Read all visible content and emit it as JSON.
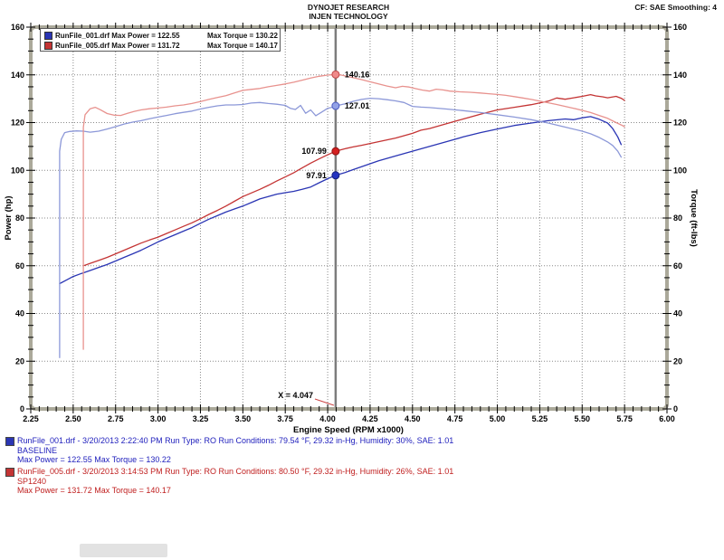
{
  "header": {
    "title_line1": "DYNOJET RESEARCH",
    "title_line2": "INJEN TECHNOLOGY",
    "cf_label": "CF: SAE  Smoothing: 4"
  },
  "legend": {
    "rows": [
      {
        "color": "#2a35b4",
        "left": "RunFile_001.drf Max Power = 122.55",
        "right": "Max Torque = 130.22"
      },
      {
        "color": "#c43434",
        "left": "RunFile_005.drf Max Power = 131.72",
        "right": "Max Torque = 140.17"
      }
    ]
  },
  "chart_data": {
    "type": "line",
    "title": "DYNOJET RESEARCH / INJEN TECHNOLOGY",
    "xlabel": "Engine Speed (RPM x1000)",
    "ylabel_left": "Power (hp)",
    "ylabel_right": "Torque (ft-lbs)",
    "xlim": [
      2.25,
      6.0
    ],
    "ylim": [
      0,
      160
    ],
    "x_major_step": 0.25,
    "x_minor_step": 0.05,
    "y_major_step": 20,
    "y_minor_step": 5,
    "grid": true,
    "legend_position": "top-left",
    "cursor_x": 4.047,
    "cursor_label": "X = 4.047",
    "x_tick_labels": [
      "2.25",
      "2.50",
      "2.75",
      "3.00",
      "3.25",
      "3.50",
      "3.75",
      "4.00",
      "4.25",
      "4.50",
      "4.75",
      "5.00",
      "5.25",
      "5.50",
      "5.75",
      "6.00"
    ],
    "y_tick_labels": [
      "0",
      "20",
      "40",
      "60",
      "80",
      "100",
      "120",
      "140",
      "160"
    ],
    "colors": {
      "grid": "#8a8a8a",
      "frame": "#aba99a",
      "cursor": "#7d7d7d",
      "annotation_pointer": "#cc4444"
    },
    "series": [
      {
        "name": "baseline-power",
        "label": "RunFile_001 Power (hp)",
        "color": "#2a35b4",
        "width": 1.3,
        "points": [
          [
            2.42,
            52.5
          ],
          [
            2.46,
            54
          ],
          [
            2.5,
            55.5
          ],
          [
            2.55,
            56.8
          ],
          [
            2.6,
            58
          ],
          [
            2.65,
            59.3
          ],
          [
            2.7,
            60.5
          ],
          [
            2.75,
            62
          ],
          [
            2.8,
            63.5
          ],
          [
            2.85,
            65
          ],
          [
            2.9,
            66.5
          ],
          [
            2.95,
            68.2
          ],
          [
            3.0,
            70
          ],
          [
            3.05,
            71.5
          ],
          [
            3.1,
            73
          ],
          [
            3.15,
            74.5
          ],
          [
            3.2,
            76
          ],
          [
            3.25,
            77.8
          ],
          [
            3.3,
            79.5
          ],
          [
            3.35,
            81
          ],
          [
            3.4,
            82.5
          ],
          [
            3.45,
            83.8
          ],
          [
            3.5,
            85
          ],
          [
            3.55,
            86.5
          ],
          [
            3.6,
            88
          ],
          [
            3.65,
            89
          ],
          [
            3.7,
            90
          ],
          [
            3.75,
            90.6
          ],
          [
            3.8,
            91.2
          ],
          [
            3.85,
            92
          ],
          [
            3.9,
            93
          ],
          [
            3.95,
            94.8
          ],
          [
            4.0,
            96.5
          ],
          [
            4.047,
            97.9
          ],
          [
            4.1,
            99
          ],
          [
            4.15,
            100.3
          ],
          [
            4.2,
            101.5
          ],
          [
            4.3,
            104
          ],
          [
            4.4,
            106
          ],
          [
            4.5,
            108
          ],
          [
            4.6,
            110
          ],
          [
            4.7,
            112
          ],
          [
            4.8,
            114
          ],
          [
            4.9,
            115.8
          ],
          [
            5.0,
            117.3
          ],
          [
            5.1,
            118.8
          ],
          [
            5.2,
            119.8
          ],
          [
            5.3,
            120.8
          ],
          [
            5.4,
            121.5
          ],
          [
            5.45,
            121.2
          ],
          [
            5.5,
            122
          ],
          [
            5.55,
            122.5
          ],
          [
            5.6,
            121.4
          ],
          [
            5.65,
            119.8
          ],
          [
            5.68,
            117.5
          ],
          [
            5.71,
            114
          ],
          [
            5.73,
            110.8
          ]
        ]
      },
      {
        "name": "sp1240-power",
        "label": "RunFile_005 Power (hp)",
        "color": "#c43434",
        "width": 1.3,
        "points": [
          [
            2.56,
            60
          ],
          [
            2.6,
            61
          ],
          [
            2.65,
            62.2
          ],
          [
            2.7,
            63.5
          ],
          [
            2.75,
            65
          ],
          [
            2.8,
            66.5
          ],
          [
            2.85,
            68
          ],
          [
            2.9,
            69.5
          ],
          [
            2.95,
            70.8
          ],
          [
            3.0,
            72
          ],
          [
            3.05,
            73.5
          ],
          [
            3.1,
            75
          ],
          [
            3.15,
            76.5
          ],
          [
            3.2,
            78
          ],
          [
            3.25,
            79.7
          ],
          [
            3.3,
            81.5
          ],
          [
            3.35,
            83.2
          ],
          [
            3.4,
            85
          ],
          [
            3.45,
            87
          ],
          [
            3.5,
            89
          ],
          [
            3.55,
            90.5
          ],
          [
            3.6,
            92
          ],
          [
            3.65,
            93.7
          ],
          [
            3.7,
            95.5
          ],
          [
            3.75,
            97.2
          ],
          [
            3.8,
            99
          ],
          [
            3.85,
            101
          ],
          [
            3.9,
            103
          ],
          [
            3.95,
            104.8
          ],
          [
            4.0,
            106.5
          ],
          [
            4.047,
            108
          ],
          [
            4.1,
            109
          ],
          [
            4.15,
            109.8
          ],
          [
            4.2,
            110.5
          ],
          [
            4.3,
            112
          ],
          [
            4.4,
            113.5
          ],
          [
            4.5,
            115.5
          ],
          [
            4.55,
            116.8
          ],
          [
            4.6,
            117.5
          ],
          [
            4.7,
            119.5
          ],
          [
            4.8,
            121.5
          ],
          [
            4.9,
            123.5
          ],
          [
            5.0,
            125.3
          ],
          [
            5.1,
            126.4
          ],
          [
            5.2,
            127.5
          ],
          [
            5.3,
            129
          ],
          [
            5.35,
            130.3
          ],
          [
            5.4,
            129.8
          ],
          [
            5.45,
            130.4
          ],
          [
            5.5,
            131
          ],
          [
            5.55,
            131.7
          ],
          [
            5.58,
            131.2
          ],
          [
            5.62,
            130.8
          ],
          [
            5.65,
            130.4
          ],
          [
            5.7,
            131
          ],
          [
            5.73,
            130.2
          ],
          [
            5.75,
            129.3
          ]
        ]
      },
      {
        "name": "baseline-torque",
        "label": "RunFile_001 Torque (ft-lbs)",
        "color": "#8c98d8",
        "width": 1.3,
        "points": [
          [
            2.42,
            21.5
          ],
          [
            2.42,
            108
          ],
          [
            2.43,
            113
          ],
          [
            2.45,
            115.8
          ],
          [
            2.48,
            116.3
          ],
          [
            2.52,
            116.5
          ],
          [
            2.56,
            116.4
          ],
          [
            2.6,
            116
          ],
          [
            2.65,
            116.4
          ],
          [
            2.7,
            117.3
          ],
          [
            2.75,
            118.3
          ],
          [
            2.8,
            119.4
          ],
          [
            2.85,
            120.2
          ],
          [
            2.9,
            120.8
          ],
          [
            2.95,
            121.6
          ],
          [
            3.0,
            122.3
          ],
          [
            3.05,
            123
          ],
          [
            3.1,
            123.7
          ],
          [
            3.15,
            124.3
          ],
          [
            3.2,
            124.8
          ],
          [
            3.25,
            125.7
          ],
          [
            3.3,
            126.4
          ],
          [
            3.35,
            127
          ],
          [
            3.4,
            127.4
          ],
          [
            3.45,
            127.4
          ],
          [
            3.5,
            127.6
          ],
          [
            3.55,
            128.2
          ],
          [
            3.6,
            128.4
          ],
          [
            3.65,
            128
          ],
          [
            3.7,
            127.7
          ],
          [
            3.75,
            127.2
          ],
          [
            3.78,
            126
          ],
          [
            3.81,
            125.5
          ],
          [
            3.84,
            127.2
          ],
          [
            3.87,
            123.9
          ],
          [
            3.9,
            125.3
          ],
          [
            3.93,
            122.9
          ],
          [
            3.96,
            124.2
          ],
          [
            4.0,
            126
          ],
          [
            4.02,
            126.3
          ],
          [
            4.047,
            127
          ],
          [
            4.1,
            127.8
          ],
          [
            4.15,
            128.9
          ],
          [
            4.2,
            129.7
          ],
          [
            4.25,
            130.2
          ],
          [
            4.3,
            130
          ],
          [
            4.35,
            129.6
          ],
          [
            4.4,
            129.1
          ],
          [
            4.45,
            128.4
          ],
          [
            4.5,
            126.8
          ],
          [
            4.55,
            126.5
          ],
          [
            4.6,
            126.3
          ],
          [
            4.7,
            125.7
          ],
          [
            4.8,
            125
          ],
          [
            4.9,
            124.2
          ],
          [
            5.0,
            123.3
          ],
          [
            5.1,
            122.3
          ],
          [
            5.2,
            121.2
          ],
          [
            5.3,
            119.8
          ],
          [
            5.4,
            118.1
          ],
          [
            5.5,
            116.4
          ],
          [
            5.55,
            115.3
          ],
          [
            5.6,
            113.8
          ],
          [
            5.65,
            111.9
          ],
          [
            5.68,
            110.4
          ],
          [
            5.71,
            108
          ],
          [
            5.73,
            105.5
          ]
        ]
      },
      {
        "name": "sp1240-torque",
        "label": "RunFile_005 Torque (ft-lbs)",
        "color": "#e8928e",
        "width": 1.3,
        "points": [
          [
            2.56,
            25
          ],
          [
            2.56,
            118
          ],
          [
            2.57,
            123.3
          ],
          [
            2.6,
            125.8
          ],
          [
            2.63,
            126.4
          ],
          [
            2.66,
            125.4
          ],
          [
            2.7,
            123.8
          ],
          [
            2.74,
            123.1
          ],
          [
            2.78,
            123
          ],
          [
            2.82,
            123.9
          ],
          [
            2.86,
            124.7
          ],
          [
            2.9,
            125.3
          ],
          [
            2.95,
            125.8
          ],
          [
            3.0,
            126.1
          ],
          [
            3.05,
            126.5
          ],
          [
            3.1,
            127
          ],
          [
            3.15,
            127.4
          ],
          [
            3.2,
            128
          ],
          [
            3.25,
            128.8
          ],
          [
            3.3,
            129.7
          ],
          [
            3.35,
            130.5
          ],
          [
            3.4,
            131.3
          ],
          [
            3.45,
            132.4
          ],
          [
            3.5,
            133.5
          ],
          [
            3.55,
            133.9
          ],
          [
            3.6,
            134.3
          ],
          [
            3.65,
            135
          ],
          [
            3.7,
            135.6
          ],
          [
            3.75,
            136.2
          ],
          [
            3.8,
            136.9
          ],
          [
            3.85,
            137.8
          ],
          [
            3.9,
            138.7
          ],
          [
            3.95,
            139.4
          ],
          [
            4.0,
            139.9
          ],
          [
            4.047,
            140.16
          ],
          [
            4.08,
            139.9
          ],
          [
            4.1,
            139.6
          ],
          [
            4.15,
            138.8
          ],
          [
            4.2,
            138
          ],
          [
            4.25,
            137.1
          ],
          [
            4.3,
            136.2
          ],
          [
            4.35,
            135.3
          ],
          [
            4.4,
            134.6
          ],
          [
            4.44,
            135.2
          ],
          [
            4.48,
            134.9
          ],
          [
            4.52,
            134.2
          ],
          [
            4.56,
            133.6
          ],
          [
            4.6,
            133.2
          ],
          [
            4.64,
            134
          ],
          [
            4.68,
            133.7
          ],
          [
            4.72,
            133.2
          ],
          [
            4.78,
            132.9
          ],
          [
            4.84,
            132.7
          ],
          [
            4.9,
            132.4
          ],
          [
            4.95,
            132.1
          ],
          [
            5.0,
            131.8
          ],
          [
            5.05,
            131.4
          ],
          [
            5.1,
            130.9
          ],
          [
            5.15,
            130.3
          ],
          [
            5.2,
            129.7
          ],
          [
            5.25,
            129
          ],
          [
            5.3,
            128.3
          ],
          [
            5.35,
            127.6
          ],
          [
            5.4,
            126.8
          ],
          [
            5.45,
            126
          ],
          [
            5.5,
            125.1
          ],
          [
            5.55,
            124.2
          ],
          [
            5.6,
            123
          ],
          [
            5.65,
            121.8
          ],
          [
            5.7,
            120
          ],
          [
            5.73,
            119
          ],
          [
            5.75,
            118.3
          ]
        ]
      }
    ],
    "markers": [
      {
        "x": 4.047,
        "y": 140.16,
        "label": "140.16",
        "side": "right",
        "fill": "#ef8a8a",
        "stroke": "#c04848"
      },
      {
        "x": 4.047,
        "y": 127.01,
        "label": "127.01",
        "side": "right",
        "fill": "#93a2e6",
        "stroke": "#4a5ac0"
      },
      {
        "x": 4.047,
        "y": 107.99,
        "label": "107.99",
        "side": "left",
        "fill": "#d42020",
        "stroke": "#8d1414"
      },
      {
        "x": 4.047,
        "y": 97.91,
        "label": "97.91",
        "side": "left",
        "fill": "#2433c0",
        "stroke": "#141f7e"
      }
    ]
  },
  "info_blocks": [
    {
      "text_color": "#2121bd",
      "swatch": "#2a35b4",
      "line1": "RunFile_001.drf - 3/20/2013 2:22:40 PM  Run Type: RO  Run Conditions: 79.54 °F, 29.32 in-Hg,  Humidity:  30%, SAE: 1.01",
      "line2": "BASELINE",
      "line3": "Max Power = 122.55  Max Torque = 130.22"
    },
    {
      "text_color": "#c02020",
      "swatch": "#c43434",
      "line1": "RunFile_005.drf - 3/20/2013 3:14:53 PM  Run Type: RO  Run Conditions: 80.50 °F, 29.32 in-Hg,  Humidity:  26%, SAE: 1.01",
      "line2": "SP1240",
      "line3": "Max Power = 131.72  Max Torque = 140.17"
    }
  ]
}
